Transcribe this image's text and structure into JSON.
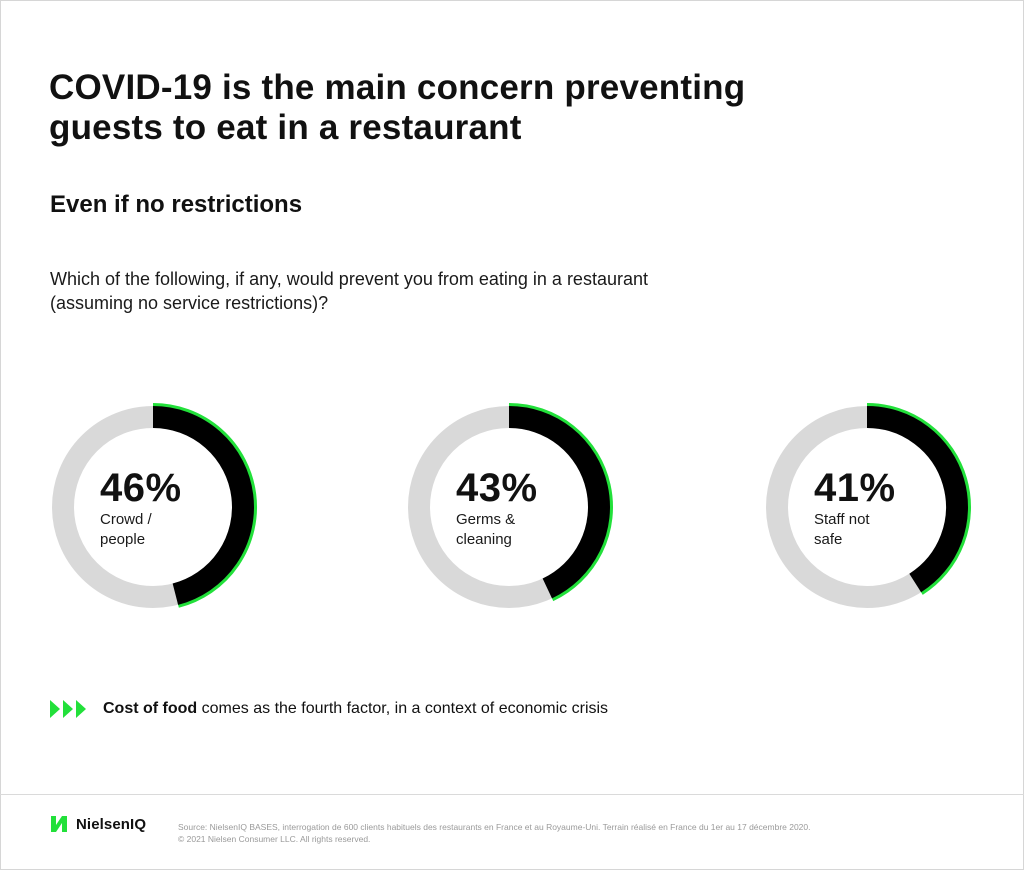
{
  "title_line1": "COVID-19 is the main concern preventing",
  "title_line2": "guests to eat in a restaurant",
  "subtitle": "Even if no restrictions",
  "question_line1": "Which of the following, if any, would prevent you from eating in a restaurant",
  "question_line2": "(assuming no service restrictions)?",
  "colors": {
    "accent": "#22e03a",
    "fill": "#000000",
    "track": "#d9d9d9"
  },
  "chart_data": {
    "type": "pie",
    "categories": [
      "Crowd / people",
      "Germs & cleaning",
      "Staff not safe"
    ],
    "values": [
      46,
      43,
      41
    ],
    "labels": [
      {
        "pct": "46%",
        "line1": "Crowd /",
        "line2": "people"
      },
      {
        "pct": "43%",
        "line1": "Germs &",
        "line2": "cleaning"
      },
      {
        "pct": "41%",
        "line1": "Staff not",
        "line2": "safe"
      }
    ],
    "unit": "%"
  },
  "note": {
    "bold": "Cost of food",
    "rest": " comes as the fourth factor, in a context of economic crisis",
    "icon": "triple-arrow-icon"
  },
  "footer": {
    "logo_text": "NielsenIQ",
    "source_line1": "Source: NielsenIQ BASES, interrogation de 600 clients habituels des restaurants en France et au Royaume-Uni. Terrain réalisé en France du 1er au 17 décembre 2020.",
    "source_line2": "© 2021 Nielsen Consumer LLC. All rights reserved."
  }
}
